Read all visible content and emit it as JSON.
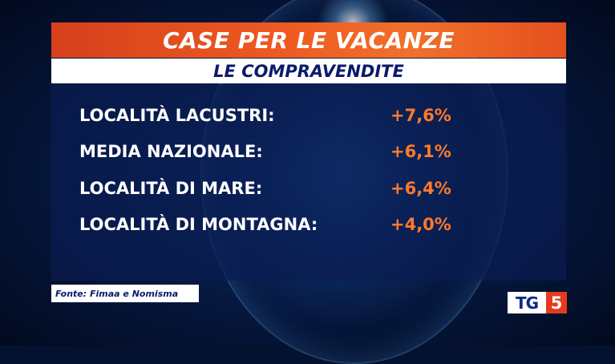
{
  "title": "CASE PER LE VACANZE",
  "subtitle": "LE COMPRAVENDITE",
  "rows": [
    {
      "label": "LOCALITÀ LACUSTRI:",
      "value": "+7,6%"
    },
    {
      "label": "MEDIA NAZIONALE:",
      "value": "+6,1%"
    },
    {
      "label": "LOCALITÀ DI MARE:",
      "value": "+6,4%"
    },
    {
      "label": "LOCALITÀ DI MONTAGNA:",
      "value": "+4,0%"
    }
  ],
  "source": "Fonte: Fimaa e Nomisma",
  "logo": {
    "letters": "TG",
    "number": "5"
  },
  "colors": {
    "title_bar": "#ee5a22",
    "subtitle_text": "#0a1a6b",
    "value_text": "#ff7a2a",
    "background": "#04122f",
    "logo_red": "#e63a1c"
  }
}
